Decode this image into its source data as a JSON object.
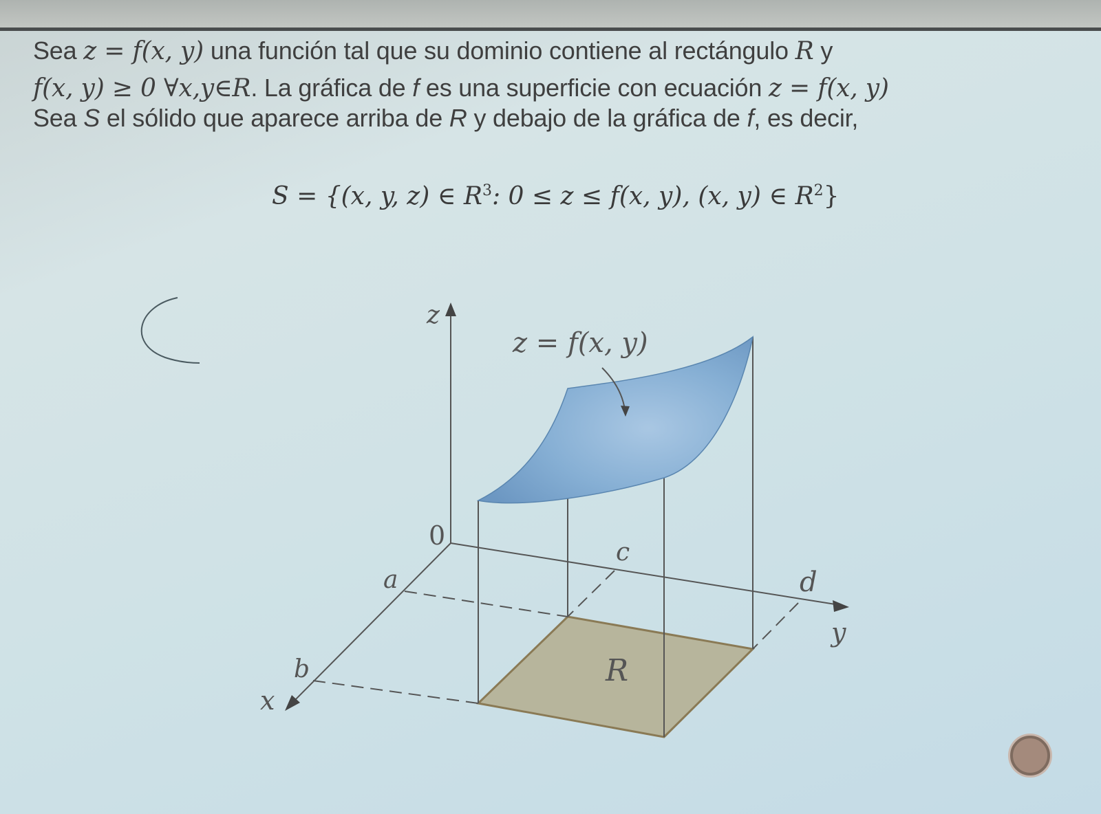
{
  "paragraph": {
    "line1": {
      "pre": "Sea ",
      "math1": "z = f(x, y)",
      "mid": " una función tal que su dominio contiene al rectángulo ",
      "math2": "R",
      "post": " y"
    },
    "line2": {
      "math1": "f(x, y) ≥ 0 ∀x,y∈R",
      "mid": ". La gráfica de ",
      "math2": "f",
      "mid2": " es una superficie con ecuación ",
      "math3": "z = f(x, y)"
    },
    "line3": {
      "pre": "Sea ",
      "math1": "S",
      "mid": " el sólido que aparece arriba de ",
      "math2": "R",
      "mid2": " y debajo de la gráfica de ",
      "math3": "f",
      "post": ", es decir,"
    }
  },
  "set_equation": "S = {(x, y, z) ∈ R",
  "set_equation_sup1": "3",
  "set_equation_mid": ": 0 ≤ z ≤ f(x, y), (x, y) ∈ R",
  "set_equation_sup2": "2",
  "set_equation_end": "}",
  "figure": {
    "surface_label": "z = f(x, y)",
    "z_axis_label": "z",
    "origin_label": "0",
    "x_axis_label": "x",
    "y_axis_label": "y",
    "label_a": "a",
    "label_b": "b",
    "label_c": "c",
    "label_d": "d",
    "region_label": "R",
    "surface_color": "#7fa9cf",
    "region_color": "#b7b59c"
  }
}
